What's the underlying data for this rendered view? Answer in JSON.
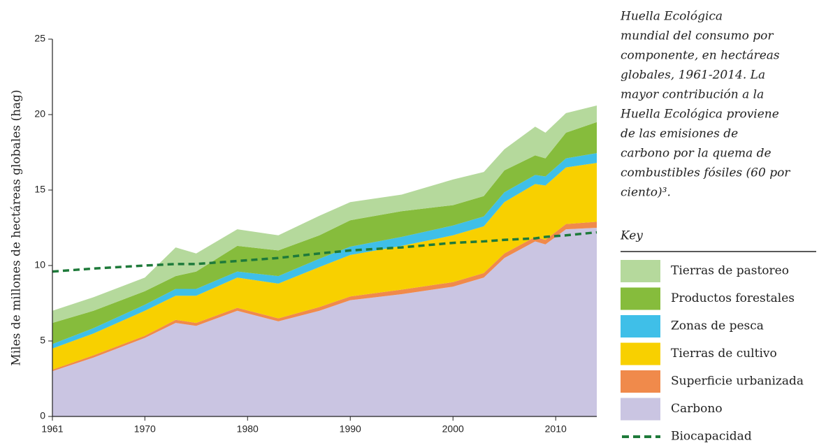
{
  "chart_data": {
    "type": "stacked_area",
    "ylabel": "Miles de millones de hectáreas globales (hag)",
    "caption_lines": [
      "Huella Ecológica",
      "mundial del consumo por",
      "componente, en hectáreas",
      "globales, 1961-2014. La",
      "mayor contribución a la",
      "Huella Ecológica proviene",
      "de las emisiones de",
      "carbono por la quema de",
      "combustibles fósiles (60 por",
      "ciento)³."
    ],
    "legend_title": "Key",
    "x": [
      1961,
      1965,
      1970,
      1973,
      1975,
      1979,
      1983,
      1987,
      1990,
      1995,
      2000,
      2003,
      2005,
      2008,
      2009,
      2011,
      2014
    ],
    "series": [
      {
        "name": "Carbono",
        "color": "#cac5e2",
        "kind": "area",
        "values": [
          3.0,
          3.9,
          5.2,
          6.2,
          6.0,
          7.0,
          6.3,
          7.0,
          7.7,
          8.1,
          8.6,
          9.2,
          10.5,
          11.6,
          11.4,
          12.4,
          12.5
        ]
      },
      {
        "name": "Superficie urbanizada",
        "color": "#f08a4b",
        "kind": "area",
        "values": [
          0.1,
          0.15,
          0.15,
          0.2,
          0.2,
          0.2,
          0.2,
          0.25,
          0.25,
          0.3,
          0.3,
          0.3,
          0.3,
          0.3,
          0.3,
          0.35,
          0.4
        ]
      },
      {
        "name": "Tierras de cultivo",
        "color": "#f8d000",
        "kind": "area",
        "values": [
          1.4,
          1.45,
          1.65,
          1.6,
          1.8,
          2.0,
          2.3,
          2.65,
          2.75,
          2.9,
          3.1,
          3.1,
          3.4,
          3.5,
          3.6,
          3.75,
          3.9
        ]
      },
      {
        "name": "Zonas de pesca",
        "color": "#3fbfe8",
        "kind": "area",
        "values": [
          0.3,
          0.35,
          0.4,
          0.45,
          0.45,
          0.4,
          0.5,
          0.55,
          0.55,
          0.6,
          0.65,
          0.65,
          0.65,
          0.6,
          0.6,
          0.6,
          0.65
        ]
      },
      {
        "name": "Productos forestales",
        "color": "#86bc3c",
        "kind": "area",
        "values": [
          1.4,
          1.15,
          0.9,
          0.85,
          1.15,
          1.7,
          1.7,
          1.55,
          1.75,
          1.7,
          1.35,
          1.35,
          1.45,
          1.3,
          1.2,
          1.7,
          2.05
        ]
      },
      {
        "name": "Tierras de pastoreo",
        "color": "#b5d99c",
        "kind": "area",
        "values": [
          0.8,
          0.9,
          0.9,
          1.9,
          1.2,
          1.1,
          1.0,
          1.3,
          1.2,
          1.1,
          1.7,
          1.6,
          1.4,
          1.9,
          1.7,
          1.3,
          1.1
        ]
      },
      {
        "name": "Biocapacidad",
        "color": "#1e7a3a",
        "kind": "dashed_line",
        "values": [
          9.6,
          9.8,
          10.0,
          10.1,
          10.1,
          10.3,
          10.5,
          10.8,
          11.0,
          11.2,
          11.5,
          11.6,
          11.7,
          11.8,
          11.9,
          12.0,
          12.2
        ]
      }
    ],
    "xlim": [
      1961,
      2014
    ],
    "xticks": [
      1961,
      1970,
      1980,
      1990,
      2000,
      2010
    ],
    "ylim": [
      0,
      25
    ],
    "yticks": [
      0,
      5,
      10,
      15,
      20,
      25
    ]
  }
}
